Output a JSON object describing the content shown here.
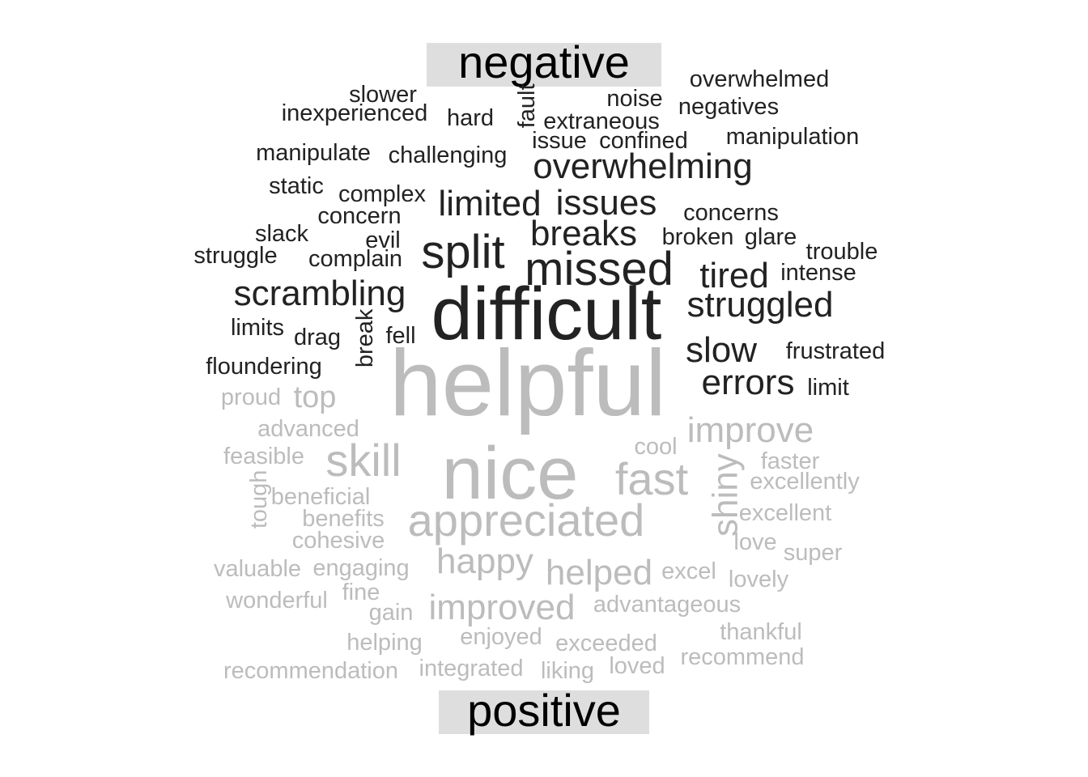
{
  "chart_data": {
    "type": "wordcloud",
    "groups": [
      {
        "label": "negative",
        "color": "#222222",
        "words": [
          {
            "word": "difficult",
            "freq": 10
          },
          {
            "word": "missed",
            "freq": 6
          },
          {
            "word": "split",
            "freq": 6
          },
          {
            "word": "overwhelming",
            "freq": 4
          },
          {
            "word": "issues",
            "freq": 4
          },
          {
            "word": "limited",
            "freq": 4
          },
          {
            "word": "breaks",
            "freq": 4
          },
          {
            "word": "scrambling",
            "freq": 4
          },
          {
            "word": "struggled",
            "freq": 4
          },
          {
            "word": "tired",
            "freq": 4
          },
          {
            "word": "slow",
            "freq": 4
          },
          {
            "word": "errors",
            "freq": 4
          },
          {
            "word": "overwhelmed",
            "freq": 2
          },
          {
            "word": "slower",
            "freq": 2
          },
          {
            "word": "noise",
            "freq": 2
          },
          {
            "word": "negatives",
            "freq": 2
          },
          {
            "word": "inexperienced",
            "freq": 2
          },
          {
            "word": "hard",
            "freq": 2
          },
          {
            "word": "fault",
            "freq": 2
          },
          {
            "word": "extraneous",
            "freq": 2
          },
          {
            "word": "issue",
            "freq": 2
          },
          {
            "word": "confined",
            "freq": 2
          },
          {
            "word": "manipulation",
            "freq": 2
          },
          {
            "word": "manipulate",
            "freq": 2
          },
          {
            "word": "challenging",
            "freq": 2
          },
          {
            "word": "static",
            "freq": 2
          },
          {
            "word": "complex",
            "freq": 2
          },
          {
            "word": "concern",
            "freq": 2
          },
          {
            "word": "concerns",
            "freq": 2
          },
          {
            "word": "slack",
            "freq": 2
          },
          {
            "word": "evil",
            "freq": 2
          },
          {
            "word": "broken",
            "freq": 2
          },
          {
            "word": "glare",
            "freq": 2
          },
          {
            "word": "trouble",
            "freq": 2
          },
          {
            "word": "struggle",
            "freq": 2
          },
          {
            "word": "complain",
            "freq": 2
          },
          {
            "word": "intense",
            "freq": 2
          },
          {
            "word": "limits",
            "freq": 2
          },
          {
            "word": "drag",
            "freq": 2
          },
          {
            "word": "break",
            "freq": 2
          },
          {
            "word": "fell",
            "freq": 2
          },
          {
            "word": "frustrated",
            "freq": 2
          },
          {
            "word": "floundering",
            "freq": 2
          },
          {
            "word": "limit",
            "freq": 2
          }
        ]
      },
      {
        "label": "positive",
        "color": "#bcbcbc",
        "words": [
          {
            "word": "helpful",
            "freq": 12
          },
          {
            "word": "nice",
            "freq": 10
          },
          {
            "word": "appreciated",
            "freq": 5
          },
          {
            "word": "fast",
            "freq": 5
          },
          {
            "word": "skill",
            "freq": 5
          },
          {
            "word": "improve",
            "freq": 4
          },
          {
            "word": "shiny",
            "freq": 4
          },
          {
            "word": "happy",
            "freq": 4
          },
          {
            "word": "helped",
            "freq": 4
          },
          {
            "word": "improved",
            "freq": 4
          },
          {
            "word": "top",
            "freq": 3
          },
          {
            "word": "proud",
            "freq": 2
          },
          {
            "word": "advanced",
            "freq": 2
          },
          {
            "word": "cool",
            "freq": 2
          },
          {
            "word": "feasible",
            "freq": 2
          },
          {
            "word": "faster",
            "freq": 2
          },
          {
            "word": "excellently",
            "freq": 2
          },
          {
            "word": "tough",
            "freq": 2
          },
          {
            "word": "beneficial",
            "freq": 2
          },
          {
            "word": "excellent",
            "freq": 2
          },
          {
            "word": "benefits",
            "freq": 2
          },
          {
            "word": "cohesive",
            "freq": 2
          },
          {
            "word": "love",
            "freq": 2
          },
          {
            "word": "super",
            "freq": 2
          },
          {
            "word": "valuable",
            "freq": 2
          },
          {
            "word": "engaging",
            "freq": 2
          },
          {
            "word": "excel",
            "freq": 2
          },
          {
            "word": "lovely",
            "freq": 2
          },
          {
            "word": "wonderful",
            "freq": 2
          },
          {
            "word": "fine",
            "freq": 2
          },
          {
            "word": "gain",
            "freq": 2
          },
          {
            "word": "advantageous",
            "freq": 2
          },
          {
            "word": "thankful",
            "freq": 2
          },
          {
            "word": "helping",
            "freq": 2
          },
          {
            "word": "enjoyed",
            "freq": 2
          },
          {
            "word": "exceeded",
            "freq": 2
          },
          {
            "word": "recommend",
            "freq": 2
          },
          {
            "word": "recommendation",
            "freq": 2
          },
          {
            "word": "integrated",
            "freq": 2
          },
          {
            "word": "liking",
            "freq": 2
          },
          {
            "word": "loved",
            "freq": 2
          }
        ]
      }
    ],
    "label_box_color": "#dedede"
  }
}
